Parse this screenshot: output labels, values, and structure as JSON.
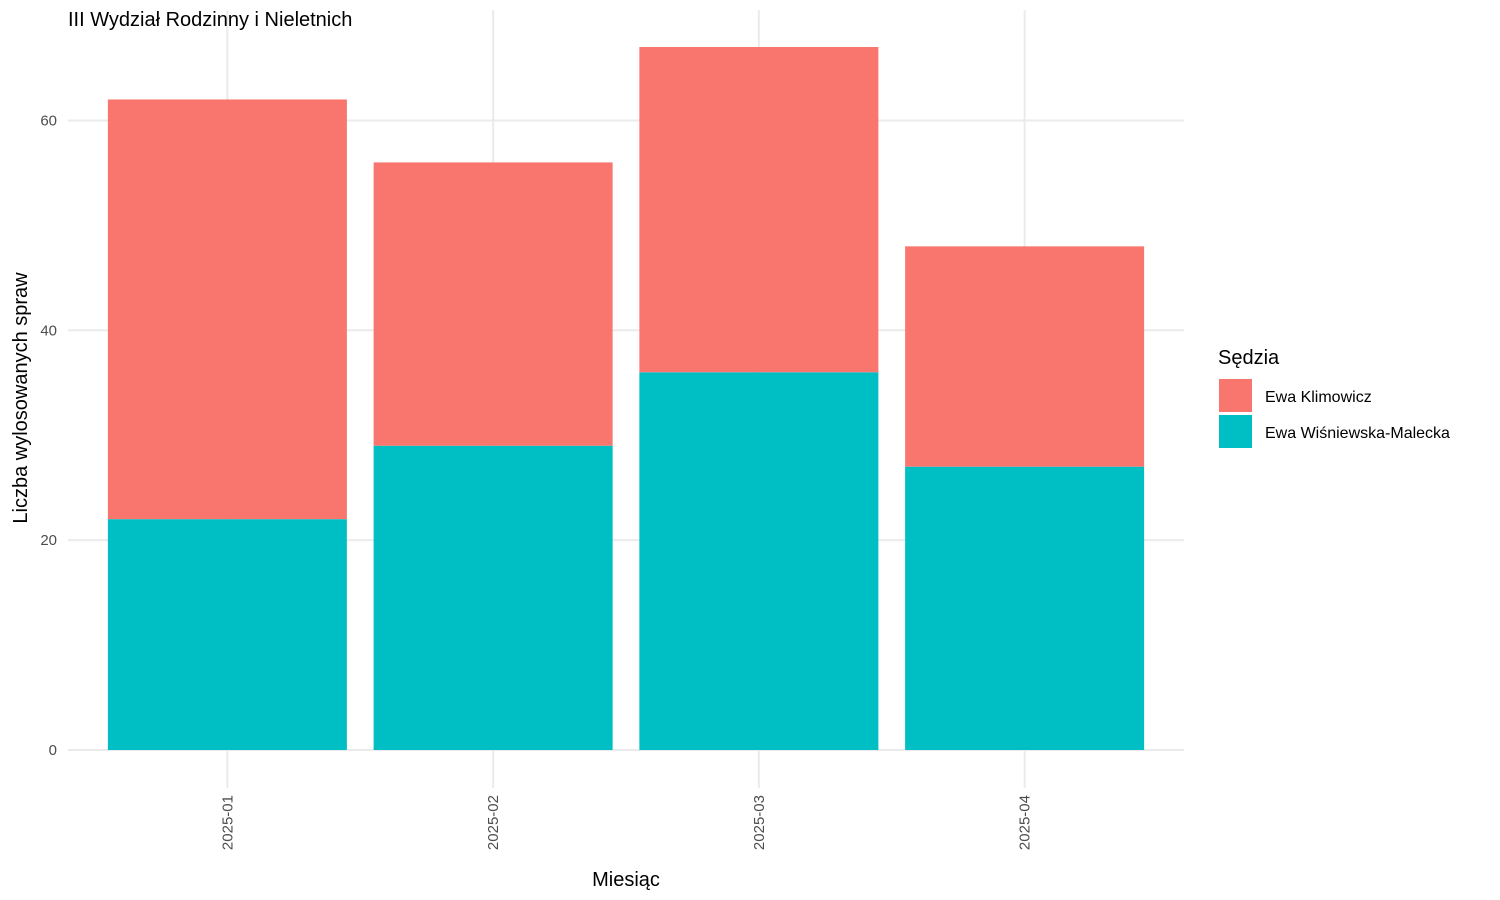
{
  "chart_data": {
    "type": "bar",
    "stacked": true,
    "title": "III Wydział Rodzinny i Nieletnich",
    "xlabel": "Miesiąc",
    "ylabel": "Liczba wylosowanych spraw",
    "categories": [
      "2025-01",
      "2025-02",
      "2025-03",
      "2025-04"
    ],
    "series": [
      {
        "name": "Ewa Wiśniewska-Malecka",
        "color": "#00BFC4",
        "values": [
          22,
          29,
          36,
          27
        ]
      },
      {
        "name": "Ewa Klimowicz",
        "color": "#F8766D",
        "values": [
          40,
          27,
          31,
          21
        ]
      }
    ],
    "ylim": [
      0,
      67
    ],
    "yticks": [
      0,
      20,
      40,
      60
    ],
    "grid": true,
    "x_tick_rotation": -90,
    "legend": {
      "title": "Sędzia",
      "position": "right",
      "order": [
        "Ewa Klimowicz",
        "Ewa Wiśniewska-Malecka"
      ]
    }
  }
}
